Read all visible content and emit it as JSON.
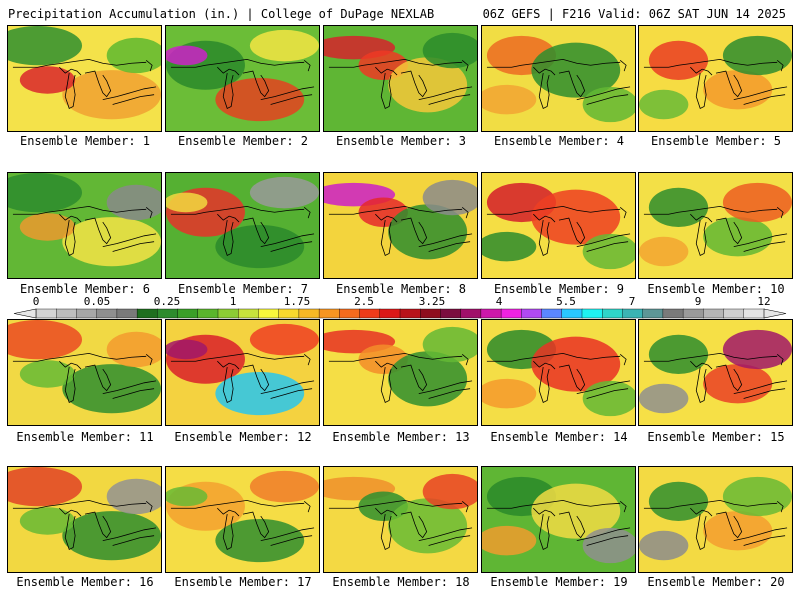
{
  "header": {
    "title_left": "Precipitation Accumulation (in.) | College of DuPage NEXLAB",
    "title_right": "06Z GEFS | F216 Valid: 06Z SAT JUN 14 2025"
  },
  "colorbar": {
    "tick_labels": [
      "0",
      "0.05",
      "0.25",
      "1",
      "1.75",
      "2.5",
      "3.25",
      "4",
      "5.5",
      "7",
      "9",
      "12"
    ],
    "colors": [
      "#d3d3d3",
      "#bdbdbd",
      "#a7a7a7",
      "#8f8f8f",
      "#7a7a7a",
      "#1f6f1f",
      "#2d8b2d",
      "#3a9f28",
      "#5ab52c",
      "#8ccc34",
      "#c7e23c",
      "#f7f73c",
      "#f8d82e",
      "#f7b825",
      "#f79521",
      "#f46b1d",
      "#ee3b1a",
      "#dc1818",
      "#b9121a",
      "#8e0e1e",
      "#7b0e3f",
      "#a0106a",
      "#cc18aa",
      "#ef22e2",
      "#b04af2",
      "#5b87ff",
      "#29c7ff",
      "#1ff2f2",
      "#2fd5c9",
      "#3bb4b4",
      "#5d9696",
      "#7a7a7a",
      "#9a9a9a",
      "#b6b6b6",
      "#cfcfcf",
      "#e4e4e4"
    ]
  },
  "members": [
    {
      "caption": "Ensemble Member: 1",
      "base": "#f4e24a",
      "blobs": [
        "#2f8f2f",
        "#f0a131",
        "#d9262b",
        "#5db82f"
      ]
    },
    {
      "caption": "Ensemble Member: 2",
      "base": "#6bbd37",
      "blobs": [
        "#2a8a2a",
        "#cd21c8",
        "#e44220",
        "#f3e543"
      ]
    },
    {
      "caption": "Ensemble Member: 3",
      "base": "#5fb634",
      "blobs": [
        "#d6232d",
        "#ee3a24",
        "#f6c83a",
        "#2c8c2c"
      ]
    },
    {
      "caption": "Ensemble Member: 4",
      "base": "#f1dd44",
      "blobs": [
        "#ec6b22",
        "#2e8e2e",
        "#f2a532",
        "#61b834"
      ]
    },
    {
      "caption": "Ensemble Member: 5",
      "base": "#f6dc43",
      "blobs": [
        "#ea3d23",
        "#f39a2c",
        "#2e8d2e",
        "#68bb36"
      ]
    },
    {
      "caption": "Ensemble Member: 6",
      "base": "#62b735",
      "blobs": [
        "#2d8c2d",
        "#f6e445",
        "#ec9a2e",
        "#8a8a8a"
      ]
    },
    {
      "caption": "Ensemble Member: 7",
      "base": "#55b032",
      "blobs": [
        "#e7332a",
        "#f2d93f",
        "#2b8a2b",
        "#9a9a9a"
      ]
    },
    {
      "caption": "Ensemble Member: 8",
      "base": "#f3d43d",
      "blobs": [
        "#cb1fc8",
        "#e5282b",
        "#2e8d2e",
        "#8b8b8b"
      ]
    },
    {
      "caption": "Ensemble Member: 9",
      "base": "#f5de44",
      "blobs": [
        "#d41d2a",
        "#ed3f22",
        "#2d8c2d",
        "#65b935"
      ]
    },
    {
      "caption": "Ensemble Member: 10",
      "base": "#f3e047",
      "blobs": [
        "#2e8d2e",
        "#61b734",
        "#ec5d22",
        "#f2a431"
      ]
    },
    {
      "caption": "Ensemble Member: 11",
      "base": "#f1d944",
      "blobs": [
        "#eb4a22",
        "#2f8e2f",
        "#66ba35",
        "#f39a2e"
      ]
    },
    {
      "caption": "Ensemble Member: 12",
      "base": "#f4d240",
      "blobs": [
        "#d9202a",
        "#a11769",
        "#27c7ef",
        "#ef3f23"
      ]
    },
    {
      "caption": "Ensemble Member: 13",
      "base": "#f5de45",
      "blobs": [
        "#e63325",
        "#f38d29",
        "#2f8f2f",
        "#64b935"
      ]
    },
    {
      "caption": "Ensemble Member: 14",
      "base": "#f4de46",
      "blobs": [
        "#2c8b2c",
        "#e93124",
        "#f49a2d",
        "#63b835"
      ]
    },
    {
      "caption": "Ensemble Member: 15",
      "base": "#f6e046",
      "blobs": [
        "#2e8d2e",
        "#ea3f26",
        "#a11769",
        "#8f8f8f"
      ]
    },
    {
      "caption": "Ensemble Member: 16",
      "base": "#f2d841",
      "blobs": [
        "#e24327",
        "#2f8e2f",
        "#67ba35",
        "#939393"
      ]
    },
    {
      "caption": "Ensemble Member: 17",
      "base": "#f5dd45",
      "blobs": [
        "#f3a12f",
        "#67ba35",
        "#2f8e2f",
        "#f07c2a"
      ]
    },
    {
      "caption": "Ensemble Member: 18",
      "base": "#f4d943",
      "blobs": [
        "#ef8f2b",
        "#2f8f2f",
        "#67bb35",
        "#e84224"
      ]
    },
    {
      "caption": "Ensemble Member: 19",
      "base": "#5fb634",
      "blobs": [
        "#2a8a2a",
        "#f2dc44",
        "#f09c2e",
        "#8f8f8f"
      ]
    },
    {
      "caption": "Ensemble Member: 20",
      "base": "#f3da43",
      "blobs": [
        "#2f8f2f",
        "#f39d2f",
        "#67ba35",
        "#8c8c8c"
      ]
    }
  ]
}
